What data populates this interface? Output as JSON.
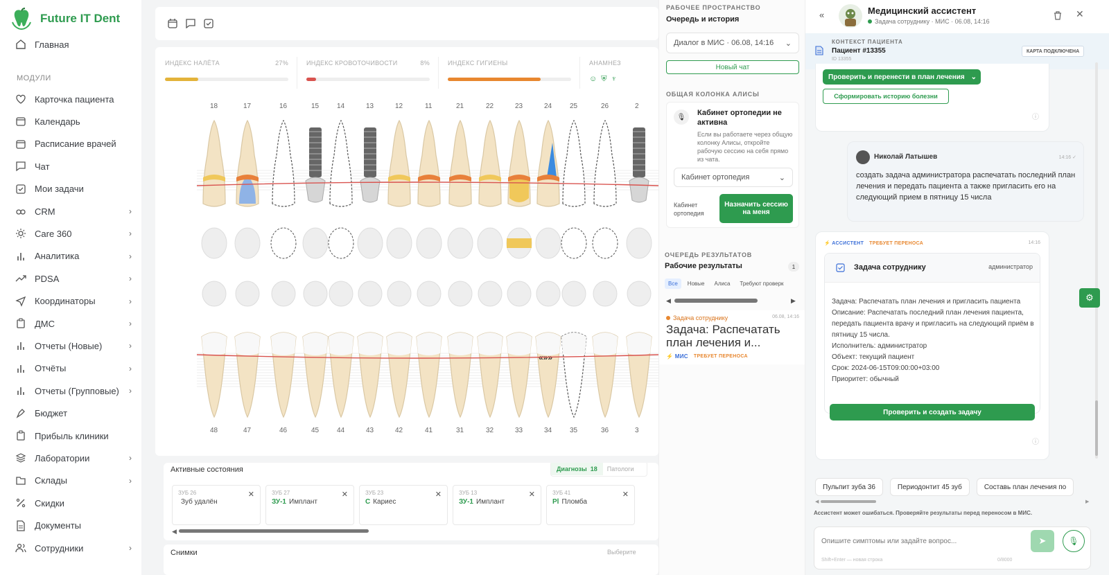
{
  "app": {
    "name": "Future IT Dent"
  },
  "sidebar": {
    "home": "Главная",
    "section": "МОДУЛИ",
    "items": [
      {
        "label": "Карточка пациента",
        "icon": "heart-icon",
        "chev": false
      },
      {
        "label": "Календарь",
        "icon": "calendar-icon",
        "chev": false
      },
      {
        "label": "Расписание врачей",
        "icon": "calendar-icon",
        "chev": false
      },
      {
        "label": "Чат",
        "icon": "chat-icon",
        "chev": false
      },
      {
        "label": "Мои задачи",
        "icon": "checkbox-icon",
        "chev": false
      },
      {
        "label": "CRM",
        "icon": "crm-icon",
        "chev": true
      },
      {
        "label": "Care 360",
        "icon": "sun-icon",
        "chev": true
      },
      {
        "label": "Аналитика",
        "icon": "bar-chart-icon",
        "chev": true
      },
      {
        "label": "PDSA",
        "icon": "trend-icon",
        "chev": true
      },
      {
        "label": "Координаторы",
        "icon": "send-icon",
        "chev": true
      },
      {
        "label": "ДМС",
        "icon": "clipboard-icon",
        "chev": true
      },
      {
        "label": "Отчеты (Новые)",
        "icon": "bar-chart-icon",
        "chev": true
      },
      {
        "label": "Отчёты",
        "icon": "bar-chart-icon",
        "chev": true
      },
      {
        "label": "Отчеты (Групповые)",
        "icon": "bar-chart-icon",
        "chev": true
      },
      {
        "label": "Бюджет",
        "icon": "wallet-icon",
        "chev": false
      },
      {
        "label": "Прибыль клиники",
        "icon": "clipboard-icon",
        "chev": false
      },
      {
        "label": "Лаборатории",
        "icon": "layers-icon",
        "chev": true
      },
      {
        "label": "Склады",
        "icon": "folder-icon",
        "chev": true
      },
      {
        "label": "Скидки",
        "icon": "percent-icon",
        "chev": false
      },
      {
        "label": "Документы",
        "icon": "document-icon",
        "chev": false
      },
      {
        "label": "Сотрудники",
        "icon": "users-icon",
        "chev": true
      }
    ]
  },
  "indices": [
    {
      "label": "ИНДЕКС НАЛЁТА",
      "value": "27%",
      "fraction": 0.27,
      "color": "#e3b33a"
    },
    {
      "label": "ИНДЕКС КРОВОТОЧИВОСТИ",
      "value": "8%",
      "fraction": 0.08,
      "color": "#d9534f"
    },
    {
      "label": "ИНДЕКС ГИГИЕНЫ",
      "value": "",
      "fraction": 0.75,
      "color": "#e8872f"
    },
    {
      "label": "АНАМНЕЗ",
      "value": "",
      "fraction": 0,
      "color": "#2e9b4f"
    }
  ],
  "teeth": {
    "upper": [
      "18",
      "17",
      "16",
      "15",
      "14",
      "13",
      "12",
      "11",
      "21",
      "22",
      "23",
      "24",
      "25",
      "26",
      "2"
    ],
    "lower": [
      "48",
      "47",
      "46",
      "45",
      "44",
      "43",
      "42",
      "41",
      "31",
      "32",
      "33",
      "34",
      "35",
      "36",
      "3"
    ]
  },
  "active": {
    "title": "Активные состояния",
    "tab_diag": "Диагнозы",
    "tab_diag_count": "18",
    "tab_path": "Патологи",
    "items": [
      {
        "tooth": "ЗУБ 26",
        "code": "",
        "text": "Зуб удалён"
      },
      {
        "tooth": "ЗУБ 27",
        "code": "ЗУ-1",
        "text": "Имплант"
      },
      {
        "tooth": "ЗУБ 23",
        "code": "С",
        "text": "Кариес"
      },
      {
        "tooth": "ЗУБ 13",
        "code": "ЗУ-1",
        "text": "Имплант"
      },
      {
        "tooth": "ЗУБ 41",
        "code": "Pl",
        "text": "Пломба"
      }
    ]
  },
  "photos": {
    "title": "Снимки",
    "select": "Выберите"
  },
  "workspace": {
    "cap": "РАБОЧЕЕ ПРОСТРАНСТВО",
    "title": "Очередь и история",
    "dialog": "Диалог в МИС · 06.08, 14:16",
    "new_chat": "Новый чат",
    "alice_cap": "ОБЩАЯ КОЛОНКА АЛИСЫ",
    "alice_title": "Кабинет ортопедии не активна",
    "alice_text": "Если вы работаете через общую колонку Алисы, откройте рабочую сессию на себя прямо из чата.",
    "cabinet_select": "Кабинет ортопедия",
    "cabinet_label": "Кабинет ортопедия",
    "assign_btn": "Назначить сессию на меня",
    "queue_cap": "ОЧЕРЕДЬ РЕЗУЛЬТАТОВ",
    "queue_title": "Рабочие результаты",
    "queue_count": "1",
    "filters": [
      "Все",
      "Новые",
      "Алиса",
      "Требуют проверк"
    ],
    "result_tag": "Задача сотруднику",
    "result_time": "06.08, 14:16",
    "result_title": "Задача: Распечатать план лечения и...",
    "result_mis": "МИС",
    "result_status": "ТРЕБУЕТ ПЕРЕНОСА"
  },
  "assistant": {
    "title": "Медицинский ассистент",
    "subtitle": "Задача сотруднику · МИС · 06.08, 14:16",
    "ctx_cap": "КОНТЕКСТ ПАЦИЕНТА",
    "patient": "Пациент #13355",
    "patient_id": "ID 13355",
    "card_badge": "КАРТА ПОДКЛЮЧЕНА",
    "check_btn": "Проверить и перенести в план лечения",
    "history_btn": "Сформировать историю болезни",
    "user_name": "Николай Латышев",
    "user_time": "14:16 ✓",
    "user_text": "создать задача администратора распечатать последний план лечения и передать пациента а также пригласить его на следующий прием в пятницу 15 числа",
    "bot_tag": "АССИСТЕНТ",
    "bot_status": "ТРЕБУЕТ ПЕРЕНОСА",
    "bot_time": "14:16",
    "task_title": "Задача сотруднику",
    "task_role": "администратор",
    "task_lines": [
      "Задача: Распечатать план лечения и пригласить пациента",
      "Описание: Распечатать последний план лечения пациента, передать пациента врачу и пригласить на следующий приём в пятницу 15 числа.",
      "Исполнитель: администратор",
      "Объект: текущий пациент",
      "Срок: 2024-06-15T09:00:00+03:00",
      "Приоритет: обычный"
    ],
    "task_btn": "Проверить и создать задачу",
    "suggestions": [
      "Пульпит зуба 36",
      "Периодонтит 45 зуб",
      "Составь план лечения по"
    ],
    "disclaimer": "Ассистент может ошибаться. Проверяйте результаты перед переносом в МИС.",
    "input_placeholder": "Опишите симптомы или задайте вопрос...",
    "input_hint": "Shift+Enter — новая строка",
    "input_count": "0/8000"
  },
  "colors": {
    "brand": "#2e9b4f",
    "status": "#e8872f"
  }
}
